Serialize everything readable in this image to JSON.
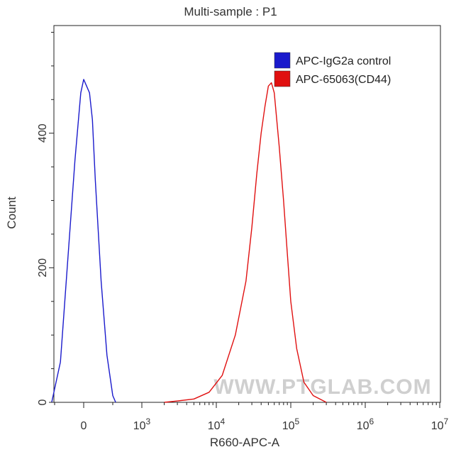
{
  "chart_data": {
    "type": "line",
    "title": "Multi-sample : P1",
    "xlabel": "R660-APC-A",
    "ylabel": "Count",
    "x_scale": "biexponential (linear near 0, log above 10^3)",
    "ylim": [
      0,
      560
    ],
    "y_ticks": [
      "0",
      "200",
      "400"
    ],
    "x_ticks": [
      {
        "label": "0",
        "base": "0",
        "exp": ""
      },
      {
        "label": "10^3",
        "base": "10",
        "exp": "3"
      },
      {
        "label": "10^4",
        "base": "10",
        "exp": "4"
      },
      {
        "label": "10^5",
        "base": "10",
        "exp": "5"
      },
      {
        "label": "10^6",
        "base": "10",
        "exp": "6"
      },
      {
        "label": "10^7",
        "base": "10",
        "exp": "7"
      }
    ],
    "legend_placement": "top-right",
    "grid": false,
    "series": [
      {
        "name": "APC-IgG2a control",
        "color": "#1a1acc",
        "x": [
          -550,
          -400,
          -300,
          -200,
          -150,
          -100,
          -50,
          0,
          50,
          100,
          150,
          200,
          300,
          400,
          500,
          550
        ],
        "y": [
          0,
          60,
          180,
          300,
          360,
          410,
          460,
          480,
          470,
          460,
          420,
          330,
          180,
          70,
          10,
          0
        ]
      },
      {
        "name": "APC-65063(CD44)",
        "color": "#e01010",
        "x": [
          2000,
          3000,
          5000,
          8000,
          12000,
          18000,
          25000,
          30000,
          35000,
          40000,
          45000,
          50000,
          55000,
          60000,
          70000,
          80000,
          90000,
          100000,
          120000,
          150000,
          200000,
          300000
        ],
        "y": [
          0,
          2,
          5,
          15,
          40,
          100,
          180,
          260,
          340,
          400,
          440,
          470,
          475,
          460,
          380,
          300,
          220,
          150,
          80,
          30,
          10,
          0
        ]
      }
    ]
  },
  "watermark": "WWW.PTGLAB.COM"
}
